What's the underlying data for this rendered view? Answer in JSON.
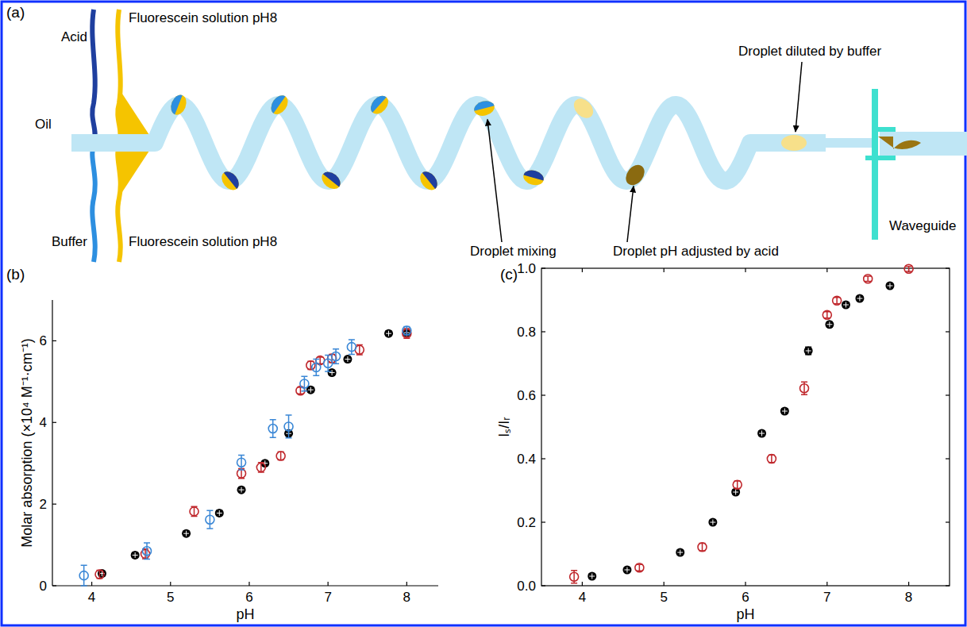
{
  "diagram": {
    "texts": {
      "panel": "(a)",
      "acid": "Acid",
      "fluorescein_top": "Fluorescein solution pH8",
      "oil": "Oil",
      "buffer": "Buffer",
      "fluorescein_bottom": "Fluorescein solution pH8",
      "mixing": "Droplet mixing",
      "ph_adjusted": "Droplet pH adjusted by acid",
      "diluted": "Droplet diluted by buffer",
      "waveguide": "Waveguide"
    }
  },
  "chart_data": [
    {
      "type": "scatter",
      "panel": "(b)",
      "x_label": "pH",
      "y_label": "Molar absorption (×10⁴ M⁻¹·cm⁻¹)",
      "xlim": [
        3.5,
        8.4
      ],
      "ylim": [
        0,
        7
      ],
      "xticks": [
        4,
        5,
        6,
        7,
        8
      ],
      "yticks": [
        0,
        2,
        4,
        6
      ],
      "grid": false,
      "series": [
        {
          "color": "#000000",
          "marker": "filled-circle",
          "x": [
            4.13,
            4.55,
            5.2,
            5.62,
            5.9,
            6.2,
            6.5,
            6.78,
            7.05,
            7.25,
            7.77,
            8.0
          ],
          "values": [
            0.3,
            0.75,
            1.28,
            1.78,
            2.35,
            3.0,
            3.73,
            4.8,
            5.22,
            5.55,
            6.18,
            6.2
          ],
          "errors": [
            0.06,
            0.06,
            0.06,
            0.06,
            0.06,
            0.06,
            0.06,
            0.06,
            0.06,
            0.06,
            0.06,
            0.06
          ]
        },
        {
          "color": "#c0282d",
          "marker": "open-circle",
          "x": [
            4.1,
            4.68,
            5.3,
            5.9,
            6.15,
            6.4,
            6.65,
            6.78,
            6.9,
            7.05,
            7.4,
            8.0
          ],
          "values": [
            0.28,
            0.78,
            1.82,
            2.75,
            2.9,
            3.18,
            4.78,
            5.4,
            5.52,
            5.57,
            5.78,
            6.18
          ],
          "errors": [
            0.1,
            0.12,
            0.12,
            0.12,
            0.12,
            0.1,
            0.08,
            0.1,
            0.08,
            0.1,
            0.12,
            0.12
          ]
        },
        {
          "color": "#3a87d6",
          "marker": "open-circle",
          "x": [
            3.9,
            4.7,
            5.5,
            5.9,
            6.3,
            6.5,
            6.7,
            6.85,
            7.0,
            7.1,
            7.3,
            8.0
          ],
          "values": [
            0.25,
            0.85,
            1.62,
            3.02,
            3.85,
            3.9,
            4.95,
            5.35,
            5.45,
            5.62,
            5.85,
            6.25
          ],
          "errors": [
            0.25,
            0.2,
            0.22,
            0.18,
            0.22,
            0.28,
            0.18,
            0.2,
            0.2,
            0.18,
            0.18,
            0.1
          ]
        }
      ]
    },
    {
      "type": "scatter",
      "panel": "(c)",
      "x_label": "pH",
      "y_label": "Iₛ/Iᵣ",
      "xlim": [
        3.5,
        8.5
      ],
      "ylim": [
        0,
        1
      ],
      "xticks": [
        4,
        5,
        6,
        7,
        8
      ],
      "yticks": [
        {
          "value": 0,
          "label": "0.0"
        },
        {
          "value": 0.2,
          "label": "0.2"
        },
        {
          "value": 0.4,
          "label": "0.4"
        },
        {
          "value": 0.6,
          "label": "0.6"
        },
        {
          "value": 0.8,
          "label": "0.8"
        },
        {
          "value": 1,
          "label": "1.0"
        }
      ],
      "grid": false,
      "series": [
        {
          "color": "#000000",
          "marker": "filled-circle",
          "x": [
            4.12,
            4.55,
            5.2,
            5.6,
            5.88,
            6.2,
            6.48,
            6.77,
            7.03,
            7.23,
            7.4,
            7.77
          ],
          "values": [
            0.03,
            0.05,
            0.105,
            0.2,
            0.295,
            0.48,
            0.55,
            0.74,
            0.823,
            0.885,
            0.905,
            0.945
          ],
          "errors": [
            0.008,
            0.008,
            0.008,
            0.008,
            0.008,
            0.008,
            0.008,
            0.012,
            0.008,
            0.008,
            0.008,
            0.008
          ]
        },
        {
          "color": "#c0282d",
          "marker": "open-circle",
          "x": [
            3.9,
            4.7,
            5.47,
            5.9,
            6.32,
            6.72,
            7.0,
            7.12,
            7.5,
            8.0
          ],
          "values": [
            0.028,
            0.057,
            0.122,
            0.318,
            0.4,
            0.622,
            0.853,
            0.898,
            0.967,
            0.998
          ],
          "errors": [
            0.02,
            0.01,
            0.012,
            0.012,
            0.012,
            0.02,
            0.01,
            0.01,
            0.008,
            0.008
          ]
        }
      ]
    }
  ]
}
